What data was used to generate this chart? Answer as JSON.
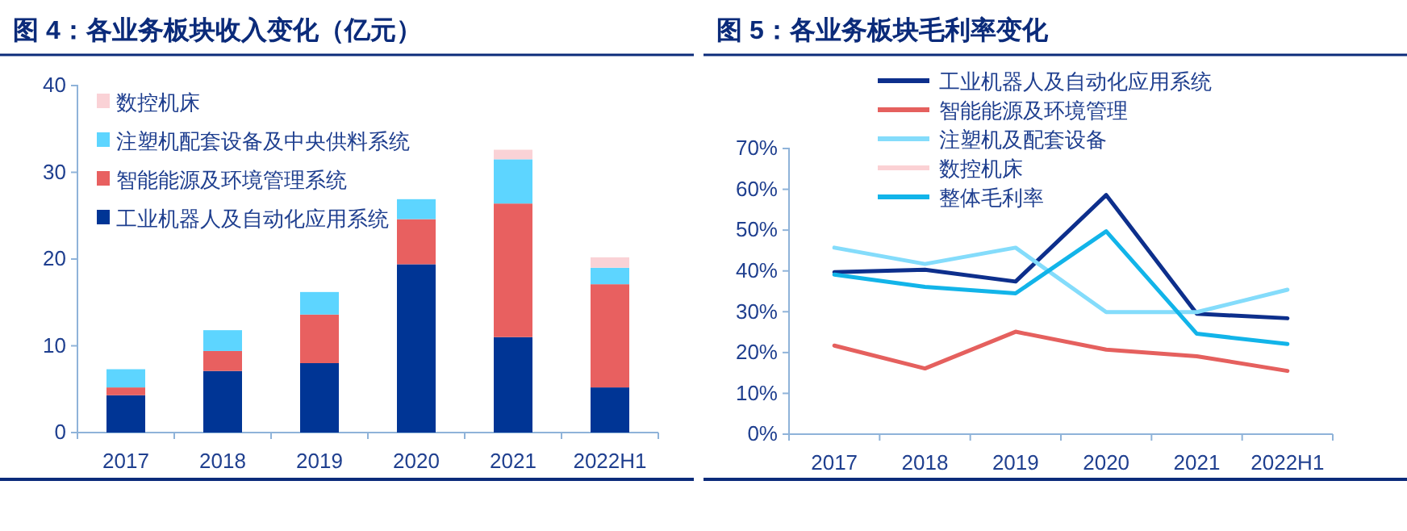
{
  "chart_data": [
    {
      "type": "bar",
      "title": "图 4：各业务板块收入变化（亿元）",
      "stacked": true,
      "legend": "top left",
      "categories": [
        "2017",
        "2018",
        "2019",
        "2020",
        "2021",
        "2022H1"
      ],
      "ylim": [
        0,
        40
      ],
      "yticks": [
        0,
        10,
        20,
        30,
        40
      ],
      "series": [
        {
          "name": "工业机器人及自动化应用系统",
          "color": "#003595",
          "values": [
            4.3,
            7.1,
            8.0,
            19.4,
            11.0,
            5.2
          ]
        },
        {
          "name": "智能能源及环境管理系统",
          "color": "#e86060",
          "values": [
            0.9,
            2.3,
            5.6,
            5.2,
            15.4,
            11.9
          ]
        },
        {
          "name": "注塑机配套设备及中央供料系统",
          "color": "#5dd5ff",
          "values": [
            2.1,
            2.4,
            2.6,
            2.3,
            5.1,
            1.9
          ]
        },
        {
          "name": "数控机床",
          "color": "#fad2d6",
          "values": [
            0,
            0,
            0,
            0,
            1.1,
            1.2
          ]
        }
      ]
    },
    {
      "type": "line",
      "title": "图 5：各业务板块毛利率变化",
      "legend": "top",
      "categories": [
        "2017",
        "2018",
        "2019",
        "2020",
        "2021",
        "2022H1"
      ],
      "ylim": [
        0,
        70
      ],
      "yticks": [
        {
          "value": 0,
          "label": "0%"
        },
        {
          "value": 10,
          "label": "10%"
        },
        {
          "value": 20,
          "label": "20%"
        },
        {
          "value": 30,
          "label": "30%"
        },
        {
          "value": 40,
          "label": "40%"
        },
        {
          "value": 50,
          "label": "50%"
        },
        {
          "value": 60,
          "label": "60%"
        },
        {
          "value": 70,
          "label": "70%"
        }
      ],
      "series": [
        {
          "name": "工业机器人及自动化应用系统",
          "color": "#0d2f8c",
          "values": [
            39.7,
            40.3,
            37.4,
            58.6,
            29.5,
            28.4
          ]
        },
        {
          "name": "智能能源及环境管理",
          "color": "#e5605e",
          "values": [
            21.7,
            16.1,
            25.1,
            20.7,
            19.1,
            15.5
          ]
        },
        {
          "name": "注塑机及配套设备",
          "color": "#84dcfb",
          "values": [
            45.7,
            41.7,
            45.7,
            29.9,
            29.9,
            35.4
          ]
        },
        {
          "name": "数控机床",
          "color": "#fbd1d4",
          "values": [
            null,
            null,
            null,
            null,
            null,
            null
          ]
        },
        {
          "name": "整体毛利率",
          "color": "#12b4e9",
          "values": [
            39.1,
            36.1,
            34.5,
            49.7,
            24.6,
            22.1
          ]
        }
      ]
    }
  ]
}
